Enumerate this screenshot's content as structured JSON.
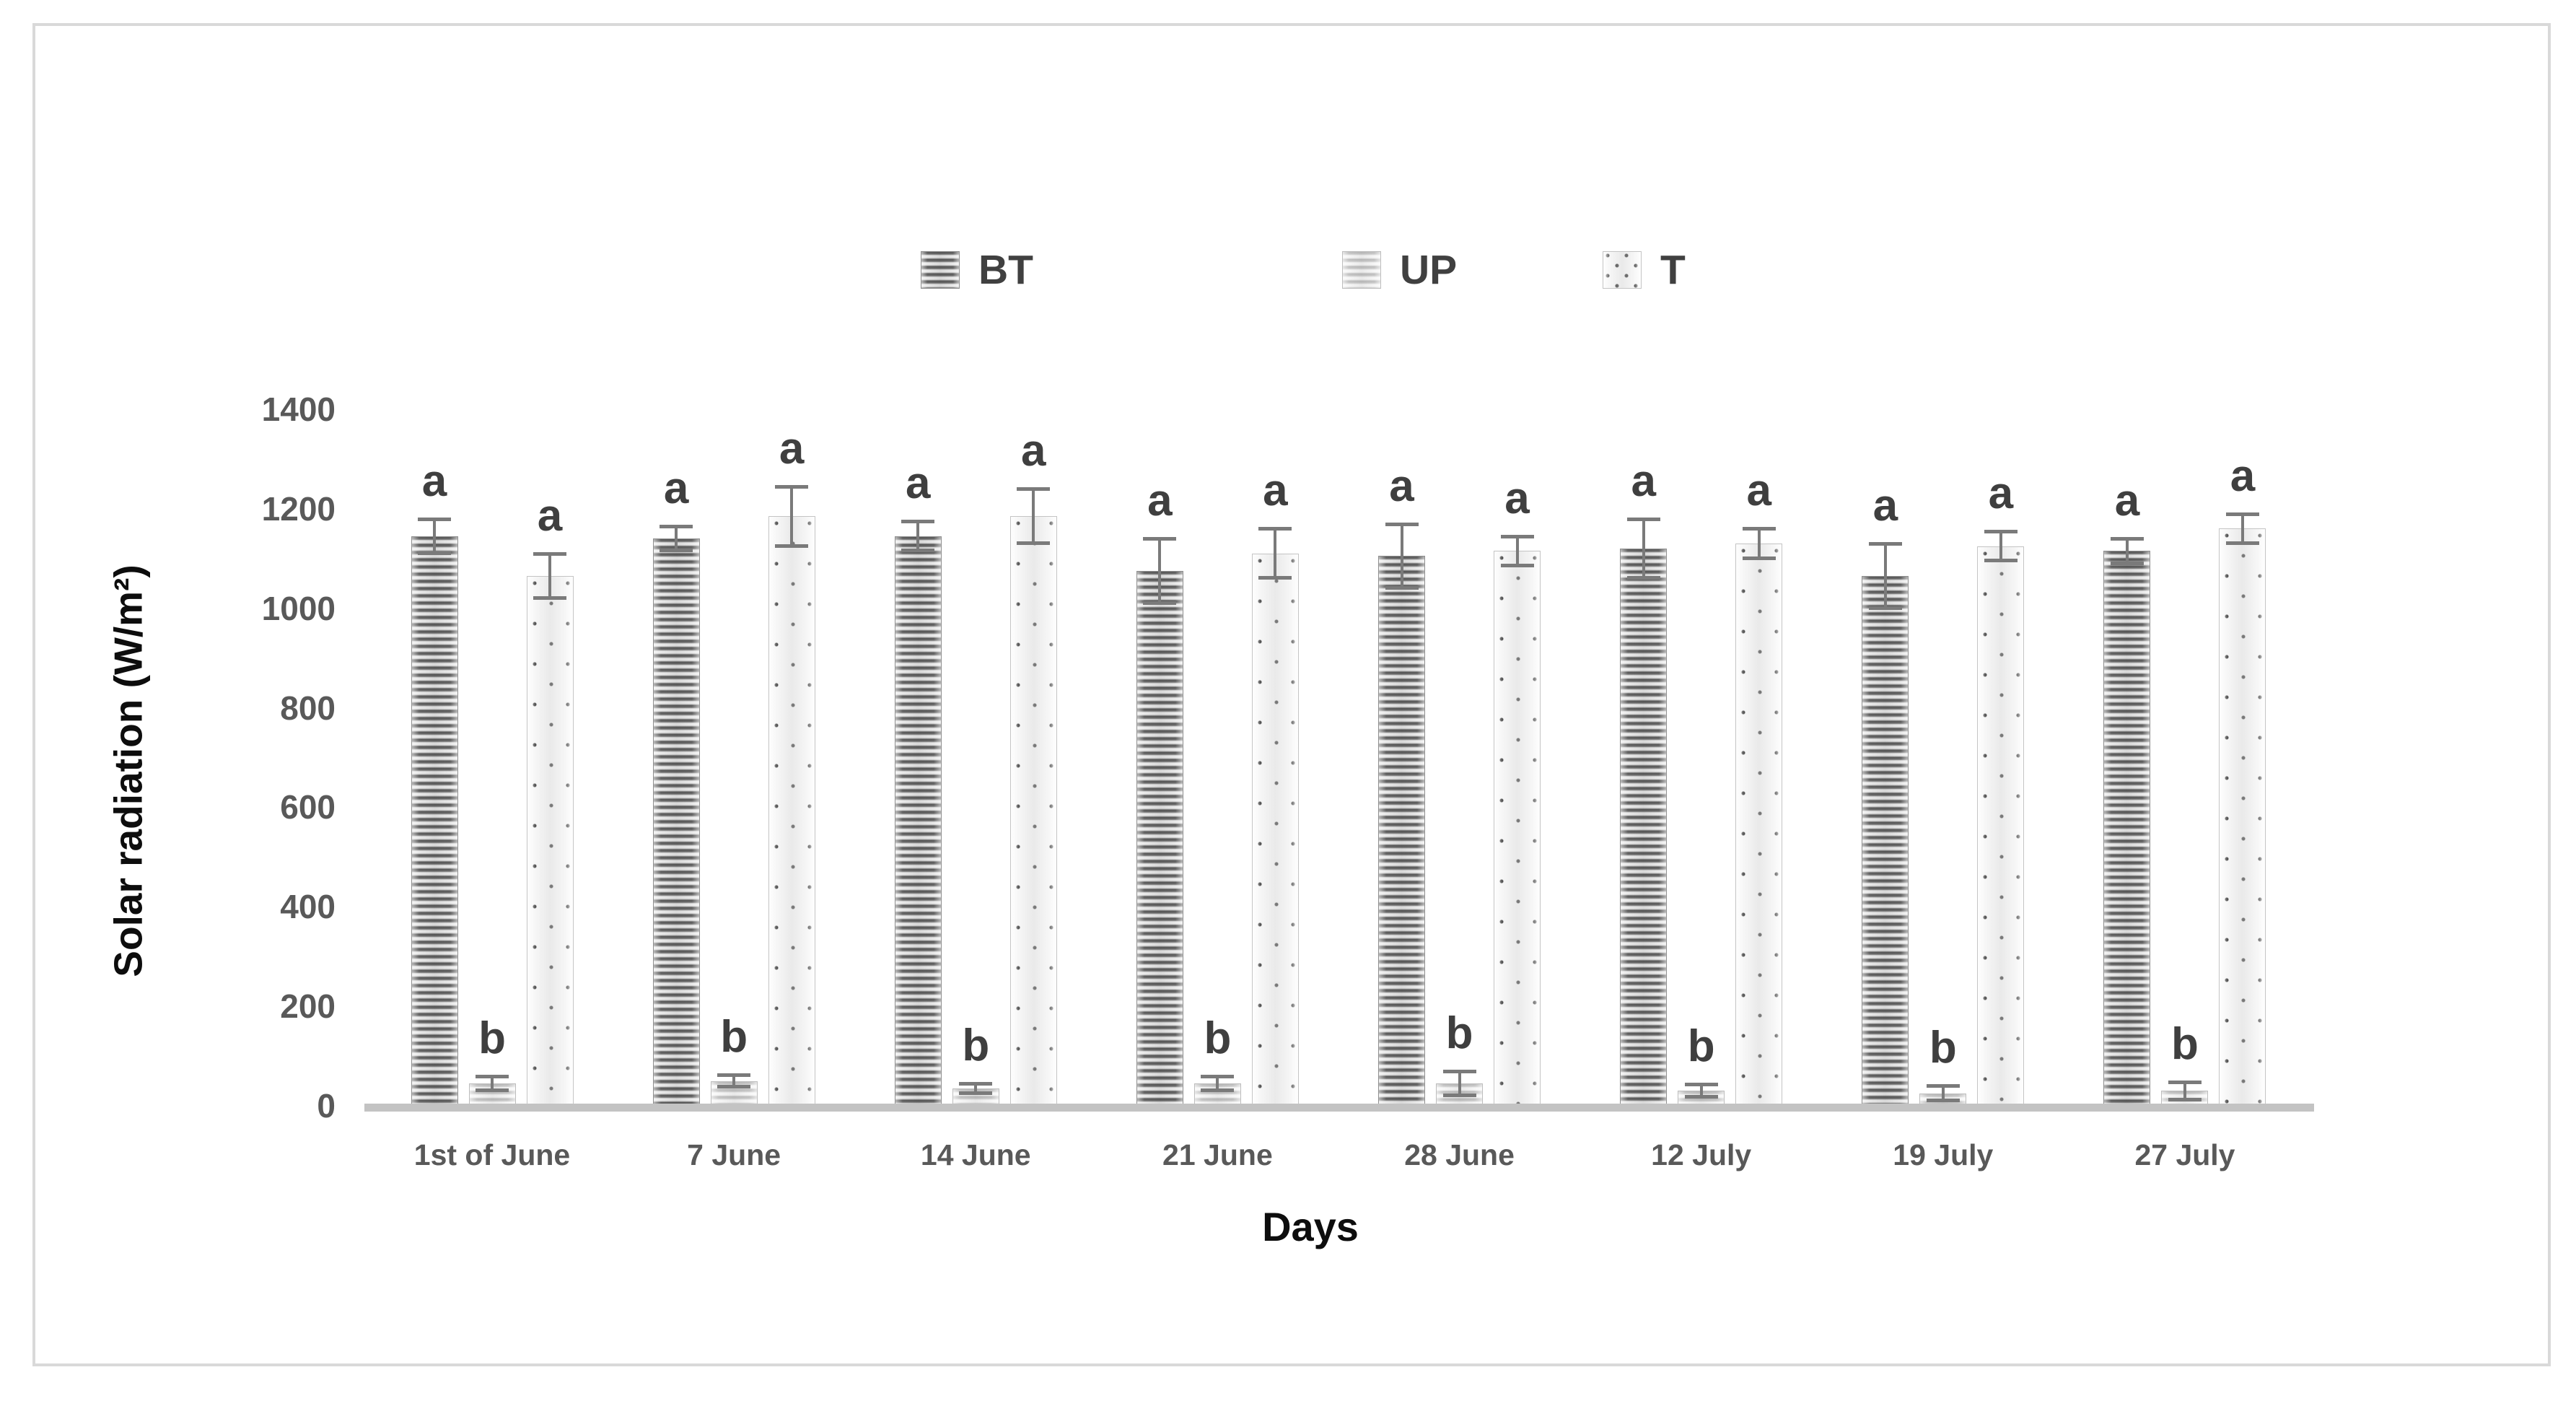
{
  "chart_data": {
    "type": "bar",
    "title": "",
    "xlabel": "Days",
    "ylabel": "Solar radiation (W/m²)",
    "ylim": [
      0,
      1400
    ],
    "yticks": [
      0,
      200,
      400,
      600,
      800,
      1000,
      1200,
      1400
    ],
    "grid": false,
    "legend_position": "top-center",
    "error_bars": true,
    "categories": [
      "1st of June",
      "7 June",
      "14 June",
      "21 June",
      "28 June",
      "12 July",
      "19 July",
      "27 July"
    ],
    "series": [
      {
        "name": "BT",
        "pattern": "dark-horizontal-stripes",
        "values": [
          1145,
          1140,
          1145,
          1075,
          1105,
          1120,
          1065,
          1115
        ],
        "errors": [
          35,
          25,
          30,
          65,
          65,
          60,
          65,
          25
        ],
        "sig_letters": [
          "a",
          "a",
          "a",
          "a",
          "a",
          "a",
          "a",
          "a"
        ]
      },
      {
        "name": "UP",
        "pattern": "light-horizontal-stripes",
        "values": [
          45,
          50,
          35,
          45,
          45,
          30,
          25,
          30
        ],
        "errors": [
          15,
          12,
          10,
          15,
          25,
          13,
          15,
          18
        ],
        "sig_letters": [
          "b",
          "b",
          "b",
          "b",
          "b",
          "b",
          "b",
          "b"
        ]
      },
      {
        "name": "T",
        "pattern": "sparse-dots",
        "values": [
          1065,
          1185,
          1185,
          1110,
          1115,
          1130,
          1125,
          1160
        ],
        "errors": [
          45,
          60,
          55,
          50,
          30,
          30,
          30,
          30
        ],
        "sig_letters": [
          "a",
          "a",
          "a",
          "a",
          "a",
          "a",
          "a",
          "a"
        ]
      }
    ],
    "colors": {
      "tick_label": "#595959",
      "axis_title": "#0d0d0d",
      "legend_label": "#404040",
      "significance_letter": "#3f3f3f",
      "error_bar": "#7a7a7a",
      "baseline": "#c3c3c3",
      "frame_border": "#d9d9d9"
    }
  }
}
